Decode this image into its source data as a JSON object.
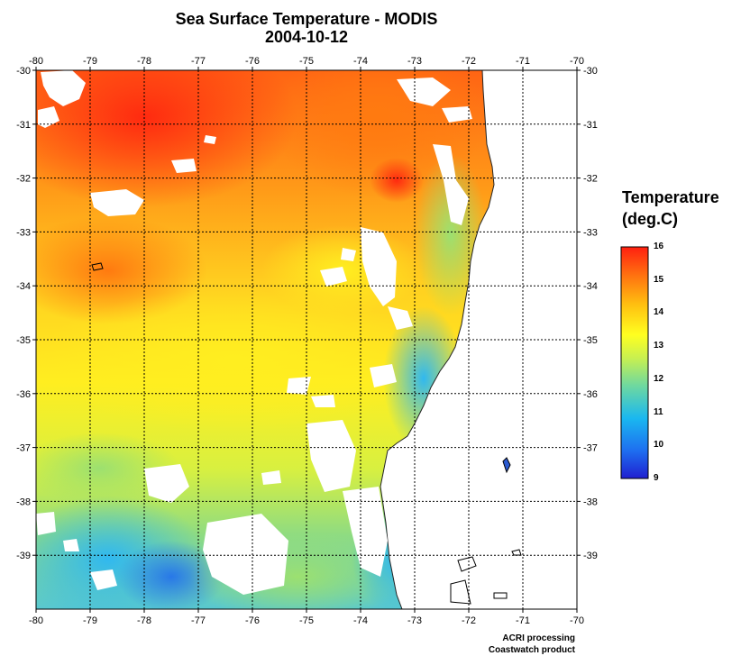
{
  "title": "Sea Surface Temperature - MODIS",
  "date": "2004-10-12",
  "legend": {
    "title_line1": "Temperature",
    "title_line2": "(deg.C)",
    "labels": [
      "16",
      "15",
      "14",
      "13",
      "12",
      "11",
      "10",
      "9"
    ],
    "min": 9,
    "max": 16,
    "colors": [
      "#2020d0",
      "#1e6ef0",
      "#1ab8f0",
      "#6ed8a0",
      "#c8f050",
      "#ffff20",
      "#ffc010",
      "#ff7010",
      "#ff2010"
    ]
  },
  "axes": {
    "lon_labels_bottom": [
      "-80",
      "-79",
      "-78",
      "-77",
      "-76",
      "-75",
      "-74",
      "-73",
      "-72",
      "-71",
      "-70"
    ],
    "lon_labels_top": [
      "-80",
      "-79",
      "-78",
      "-77",
      "-76",
      "-75",
      "-74",
      "-73",
      "-72",
      "-71",
      "-70"
    ],
    "lat_labels_left": [
      "-30",
      "-31",
      "-32",
      "-33",
      "-34",
      "-35",
      "-36",
      "-37",
      "-38",
      "-39"
    ],
    "lat_labels_right": [
      "-30",
      "-31",
      "-32",
      "-33",
      "-34",
      "-35",
      "-36",
      "-37",
      "-38",
      "-39"
    ],
    "lon_range": [
      -80,
      -70
    ],
    "lat_range": [
      -40,
      -30
    ],
    "grid": "dotted"
  },
  "credits": {
    "line1": "ACRI processing",
    "line2": "Coastwatch product"
  }
}
